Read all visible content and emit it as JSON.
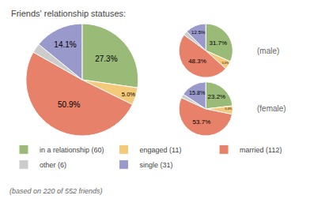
{
  "chart_data": [
    {
      "type": "pie",
      "title": "Friends' relationship statuses:",
      "subtitle": "(based on 220 of 552 friends)",
      "categories": [
        "in a relationship (60)",
        "engaged (11)",
        "married (112)",
        "other (6)",
        "single (31)"
      ],
      "values": [
        27.3,
        5.0,
        50.9,
        2.7,
        14.1
      ],
      "value_labels": [
        "27.3%",
        "5.0%",
        "50.9%",
        null,
        "14.1%"
      ],
      "colors": [
        "#99bb77",
        "#f5c97a",
        "#e8816a",
        "#cccccc",
        "#9999cc"
      ],
      "data_labels": true,
      "legend": "bottom"
    },
    {
      "type": "pie",
      "title": "(male)",
      "categories": [
        "in a relationship (60)",
        "engaged (11)",
        "married (112)",
        "other (6)",
        "single (31)"
      ],
      "values": [
        31.7,
        5.0,
        48.3,
        2.5,
        12.5
      ],
      "value_labels": [
        "31.7%",
        "5.0%",
        "48.3%",
        null,
        "12.5%"
      ],
      "colors": [
        "#99bb77",
        "#f5c97a",
        "#e8816a",
        "#cccccc",
        "#9999cc"
      ],
      "data_labels": true
    },
    {
      "type": "pie",
      "title": "(female)",
      "categories": [
        "in a relationship (60)",
        "engaged (11)",
        "married (112)",
        "other (6)",
        "single (31)"
      ],
      "values": [
        23.2,
        5.0,
        53.7,
        2.3,
        15.8
      ],
      "value_labels": [
        "23.2%",
        "5.0%",
        "53.7%",
        null,
        "15.8%"
      ],
      "colors": [
        "#99bb77",
        "#f5c97a",
        "#e8816a",
        "#cccccc",
        "#9999cc"
      ],
      "data_labels": true
    }
  ]
}
